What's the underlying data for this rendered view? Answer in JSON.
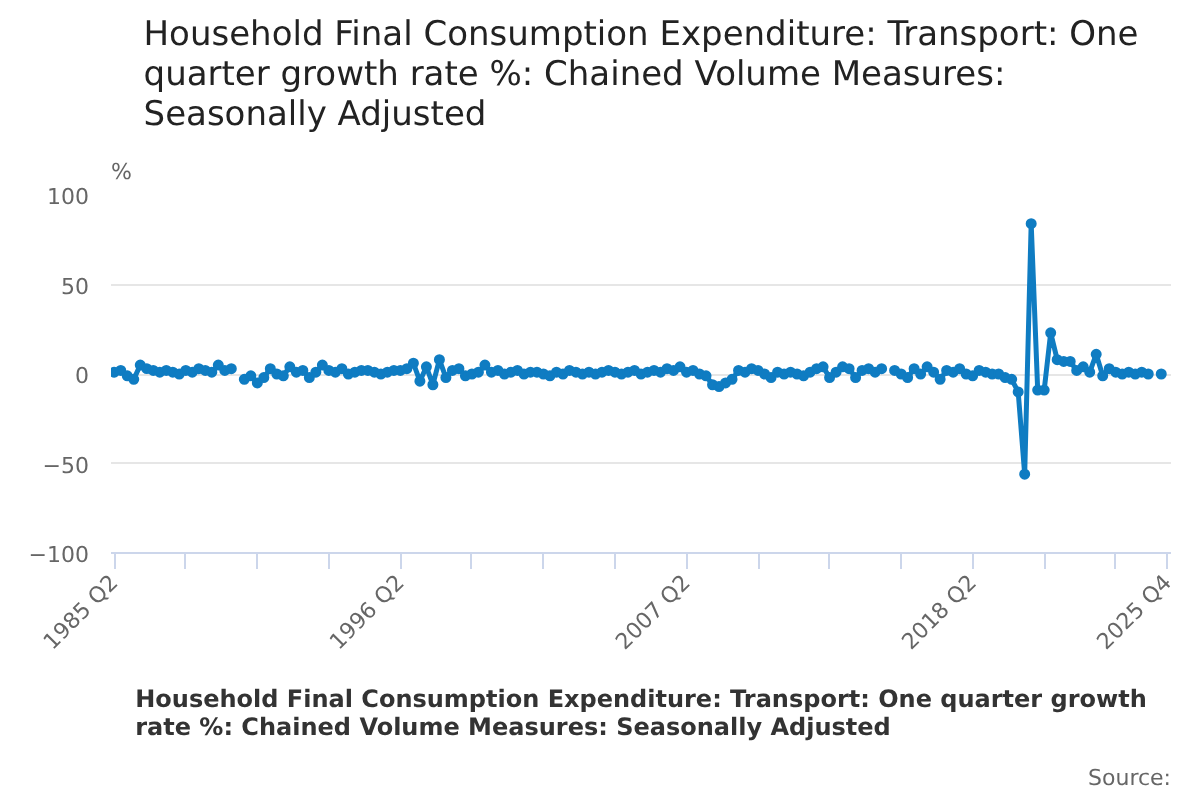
{
  "chart_data": {
    "type": "line",
    "title": "Household Final Consumption Expenditure: Transport: One quarter growth rate %: Chained Volume Measures: Seasonally Adjusted",
    "xlabel": "Household Final Consumption Expenditure: Transport: One quarter growth rate %: Chained Volume Measures: Seasonally Adjusted",
    "ylabel": "%",
    "annotations": [
      "Source:"
    ],
    "categories": [
      "1985 Q2",
      null,
      null,
      null,
      null,
      null,
      null,
      null,
      null,
      null,
      null,
      null,
      null,
      null,
      null,
      null,
      null,
      null,
      null,
      null,
      null,
      null,
      null,
      null,
      null,
      null,
      null,
      null,
      null,
      null,
      null,
      null,
      null,
      null,
      null,
      null,
      null,
      null,
      null,
      null,
      null,
      null,
      null,
      null,
      "1996 Q2",
      null,
      null,
      null,
      null,
      null,
      null,
      null,
      null,
      null,
      null,
      null,
      null,
      null,
      null,
      null,
      null,
      null,
      null,
      null,
      null,
      null,
      null,
      null,
      null,
      null,
      null,
      null,
      null,
      null,
      null,
      null,
      null,
      null,
      null,
      null,
      null,
      null,
      null,
      null,
      null,
      null,
      null,
      null,
      "2007 Q2",
      null,
      null,
      null,
      null,
      null,
      null,
      null,
      null,
      null,
      null,
      null,
      null,
      null,
      null,
      null,
      null,
      null,
      null,
      null,
      null,
      null,
      null,
      null,
      null,
      null,
      null,
      null,
      null,
      null,
      null,
      null,
      null,
      null,
      null,
      null,
      null,
      null,
      null,
      null,
      null,
      null,
      null,
      null,
      "2018 Q2",
      null,
      null,
      null,
      null,
      null,
      null,
      null,
      null,
      null,
      null,
      null,
      null,
      null,
      null,
      null,
      null,
      null,
      null,
      null,
      null,
      null,
      null,
      null,
      null,
      null,
      null,
      null,
      null,
      null,
      "2025 Q4"
    ],
    "series": [
      {
        "color": "#0f7cc2",
        "values": [
          1,
          2,
          -1,
          -3,
          5,
          3,
          2,
          1,
          2,
          1,
          0,
          2,
          1,
          3,
          2,
          1,
          5,
          2,
          3,
          null,
          -3,
          -1,
          -5,
          -2,
          3,
          0,
          -1,
          4,
          1,
          2,
          -2,
          1,
          5,
          2,
          1,
          3,
          0,
          1,
          2,
          2,
          1,
          0,
          1,
          2,
          2,
          3,
          6,
          -4,
          4,
          -6,
          8,
          -2,
          2,
          3,
          -1,
          0,
          1,
          5,
          1,
          2,
          0,
          1,
          2,
          0,
          1,
          1,
          0,
          -1,
          1,
          0,
          2,
          1,
          0,
          1,
          0,
          1,
          2,
          1,
          0,
          1,
          2,
          0,
          1,
          2,
          1,
          3,
          2,
          4,
          1,
          2,
          0,
          -1,
          -6,
          -7,
          -5,
          -3,
          2,
          1,
          3,
          2,
          0,
          -2,
          1,
          0,
          1,
          0,
          -1,
          1,
          3,
          4,
          -2,
          1,
          4,
          3,
          -2,
          2,
          3,
          1,
          3,
          null,
          2,
          0,
          -2,
          3,
          0,
          4,
          1,
          -3,
          2,
          1,
          3,
          0,
          -1,
          2,
          1,
          0,
          0,
          -2,
          -3,
          -10,
          -56,
          84,
          -9,
          -9,
          23,
          8,
          7,
          7,
          2,
          4,
          1,
          11,
          -1,
          3,
          1,
          0,
          1,
          0,
          1,
          0,
          null,
          0,
          null
        ]
      }
    ],
    "ylim": [
      -100,
      100
    ],
    "yticks": [
      -100,
      -50,
      0,
      50,
      100
    ],
    "grid": "y",
    "marker": "circle"
  }
}
